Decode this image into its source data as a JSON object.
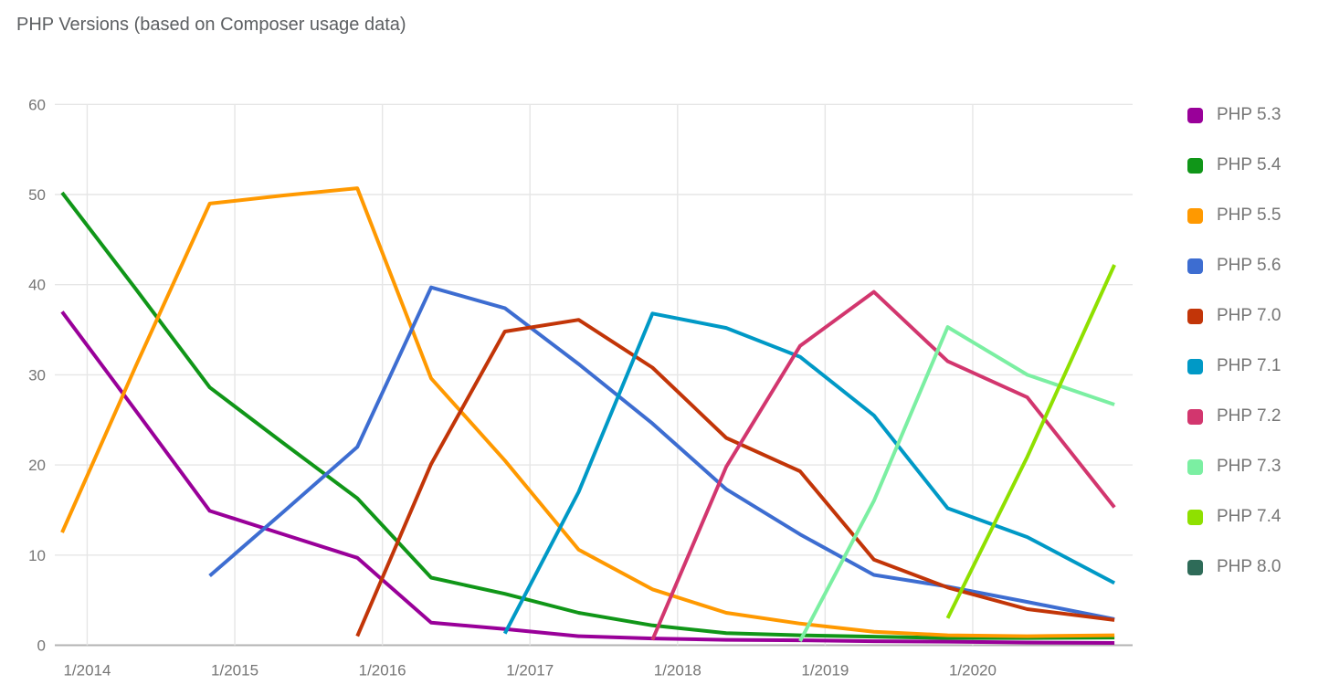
{
  "chart_data": {
    "type": "line",
    "title": "PHP Versions (based on Composer usage data)",
    "xlabel": "",
    "ylabel": "",
    "ylim": [
      0,
      60
    ],
    "grid": true,
    "legend_position": "right",
    "y_ticks": [
      0,
      10,
      20,
      30,
      40,
      50,
      60
    ],
    "x_ticks": [
      {
        "year": 2014,
        "label": "1/2014"
      },
      {
        "year": 2015,
        "label": "1/2015"
      },
      {
        "year": 2016,
        "label": "1/2016"
      },
      {
        "year": 2017,
        "label": "1/2017"
      },
      {
        "year": 2018,
        "label": "1/2018"
      },
      {
        "year": 2019,
        "label": "1/2019"
      },
      {
        "year": 2020,
        "label": "1/2020"
      }
    ],
    "x_labels": [
      "11/2013",
      "5/2014",
      "11/2014",
      "5/2015",
      "11/2015",
      "5/2016",
      "11/2016",
      "5/2017",
      "11/2017",
      "5/2018",
      "11/2018",
      "5/2019",
      "11/2019",
      "5/2020",
      "12/2020"
    ],
    "x_dates_frac": [
      2013.83,
      2014.33,
      2014.83,
      2015.33,
      2015.83,
      2016.33,
      2016.83,
      2017.33,
      2017.83,
      2018.33,
      2018.83,
      2019.33,
      2019.83,
      2020.37,
      2020.96
    ],
    "series": [
      {
        "name": "PHP 5.3",
        "color": "#990099",
        "values": [
          37.0,
          26.0,
          14.9,
          12.3,
          9.7,
          2.5,
          1.8,
          1.0,
          0.75,
          0.6,
          0.55,
          0.45,
          0.4,
          0.3,
          0.25
        ]
      },
      {
        "name": "PHP 5.4",
        "color": "#109618",
        "values": [
          50.2,
          39.5,
          28.6,
          22.4,
          16.3,
          7.5,
          5.7,
          3.6,
          2.2,
          1.35,
          1.1,
          0.95,
          0.8,
          0.8,
          0.85
        ]
      },
      {
        "name": "PHP 5.5",
        "color": "#FF9900",
        "values": [
          12.5,
          31.0,
          49.0,
          49.9,
          50.7,
          29.6,
          20.5,
          10.6,
          6.2,
          3.6,
          2.4,
          1.5,
          1.1,
          1.0,
          1.1
        ]
      },
      {
        "name": "PHP 5.6",
        "color": "#3D6DD1",
        "values": [
          null,
          null,
          7.7,
          14.8,
          22.0,
          39.7,
          37.4,
          31.2,
          24.6,
          17.3,
          12.3,
          7.8,
          6.5,
          4.8,
          2.9
        ]
      },
      {
        "name": "PHP 7.0",
        "color": "#C23508",
        "values": [
          null,
          null,
          null,
          null,
          1.0,
          20.1,
          34.8,
          36.1,
          30.8,
          23.0,
          19.3,
          9.5,
          6.4,
          4.0,
          2.8
        ]
      },
      {
        "name": "PHP 7.1",
        "color": "#0099C6",
        "values": [
          null,
          null,
          null,
          null,
          null,
          null,
          1.3,
          17.0,
          36.8,
          35.2,
          32.0,
          25.5,
          15.2,
          12.0,
          6.9
        ]
      },
      {
        "name": "PHP 7.2",
        "color": "#D2366E",
        "values": [
          null,
          null,
          null,
          null,
          null,
          null,
          null,
          null,
          0.6,
          19.8,
          33.2,
          39.2,
          31.5,
          27.5,
          15.3
        ]
      },
      {
        "name": "PHP 7.3",
        "color": "#7BEFA2",
        "values": [
          null,
          null,
          null,
          null,
          null,
          null,
          null,
          null,
          null,
          null,
          0.45,
          16.0,
          35.3,
          30.0,
          26.7
        ]
      },
      {
        "name": "PHP 7.4",
        "color": "#8FE000",
        "values": [
          null,
          null,
          null,
          null,
          null,
          null,
          null,
          null,
          null,
          null,
          null,
          null,
          3.0,
          20.9,
          42.2
        ]
      },
      {
        "name": "PHP 8.0",
        "color": "#2E6B58",
        "values": [
          null,
          null,
          null,
          null,
          null,
          null,
          null,
          null,
          null,
          null,
          null,
          null,
          null,
          null,
          0.3
        ]
      }
    ]
  },
  "colors": {
    "title": "#5c5f62",
    "axis_label": "#757575",
    "legend_label": "#757575",
    "grid": "#e6e6e6",
    "zero_line": "#b3b3b3"
  }
}
